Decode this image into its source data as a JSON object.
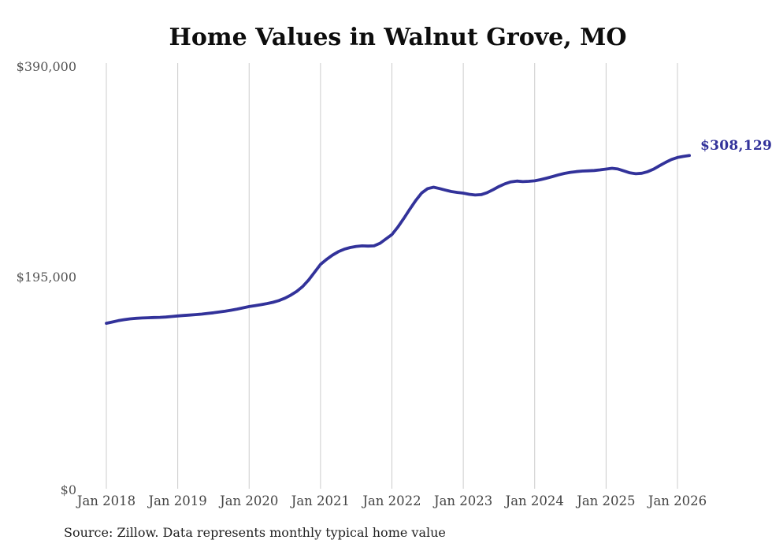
{
  "page": {
    "background": "#ffffff"
  },
  "header": {
    "title": "Home Values in Walnut Grove, MO"
  },
  "footer": {
    "source_note": "Source: Zillow. Data represents monthly typical home value"
  },
  "annotation": {
    "end_label": "$308,129"
  },
  "colors": {
    "line": "#32329a",
    "annotation": "#32329a",
    "gridline": "#cccccc",
    "axis_text": "#4a4a4a",
    "title_text": "#0d0d0d",
    "source_text": "#1f1f1f"
  },
  "chart_data": {
    "type": "line",
    "title": "Home Values in Walnut Grove, MO",
    "series_name": "Monthly typical home value",
    "unit": "USD",
    "legend": "none",
    "grid": "vertical-only",
    "ylim": [
      0,
      390000
    ],
    "y_tick_values": [
      0,
      195000,
      390000
    ],
    "y_tick_labels": [
      "$0",
      "$195,000",
      "$390,000"
    ],
    "x_tick_labels": [
      "Jan 2018",
      "Jan 2019",
      "Jan 2020",
      "Jan 2021",
      "Jan 2022",
      "Jan 2023",
      "Jan 2024",
      "Jan 2025",
      "Jan 2026"
    ],
    "x_start_month": "Jan 2018",
    "months_per_tick": 12,
    "final_value": 308129,
    "final_value_label": "$308,129",
    "values": [
      153000,
      154200,
      155400,
      156400,
      157100,
      157600,
      157900,
      158100,
      158300,
      158500,
      158800,
      159300,
      159800,
      160200,
      160600,
      161000,
      161500,
      162100,
      162700,
      163400,
      164200,
      165100,
      166100,
      167300,
      168500,
      169300,
      170200,
      171200,
      172400,
      174000,
      176200,
      179000,
      182500,
      187000,
      193000,
      200200,
      207500,
      212000,
      216000,
      219200,
      221500,
      223100,
      224100,
      224600,
      224400,
      224600,
      227000,
      231000,
      235000,
      242000,
      250000,
      258500,
      266500,
      273500,
      277500,
      278800,
      277600,
      276100,
      274800,
      274000,
      273400,
      272300,
      271600,
      272000,
      273800,
      276500,
      279500,
      282000,
      283800,
      284500,
      284000,
      284300,
      284700,
      285800,
      287200,
      288700,
      290300,
      291600,
      292600,
      293300,
      293800,
      294000,
      294300,
      294900,
      295600,
      296300,
      295700,
      293900,
      292100,
      291300,
      291700,
      293200,
      295600,
      298700,
      301800,
      304500,
      306300,
      307300,
      308129
    ]
  }
}
